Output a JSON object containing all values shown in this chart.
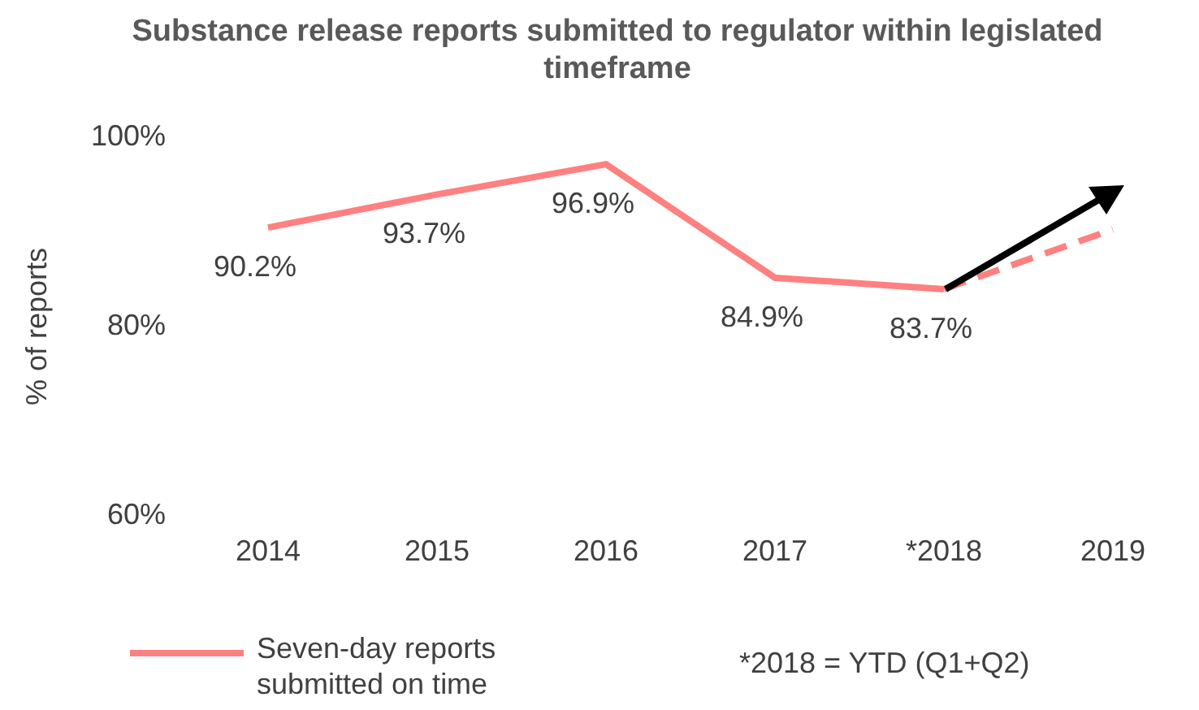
{
  "chart_data": {
    "type": "line",
    "title": "Substance release reports submitted to regulator within legislated timeframe",
    "ylabel": "% of reports",
    "categories": [
      "2014",
      "2015",
      "2016",
      "2017",
      "*2018",
      "2019"
    ],
    "series": [
      {
        "name": "Seven-day reports submitted on time",
        "color": "#ff8080",
        "values": [
          90.2,
          93.7,
          96.9,
          84.9,
          83.7,
          null
        ],
        "value_labels": [
          "90.2%",
          "93.7%",
          "96.9%",
          "84.9%",
          "83.7%",
          null
        ],
        "line_style": "solid"
      },
      {
        "color": "#ff8080",
        "values": [
          null,
          null,
          null,
          null,
          83.7,
          90
        ],
        "line_style": "dashed"
      }
    ],
    "ylim": [
      60,
      100
    ],
    "yticks": [
      {
        "value": 60,
        "label": "60%"
      },
      {
        "value": 80,
        "label": "80%"
      },
      {
        "value": 100,
        "label": "100%"
      }
    ],
    "legend": "bottom",
    "marker": "none",
    "annotations": [
      "*2018 = YTD (Q1+Q2)"
    ]
  }
}
